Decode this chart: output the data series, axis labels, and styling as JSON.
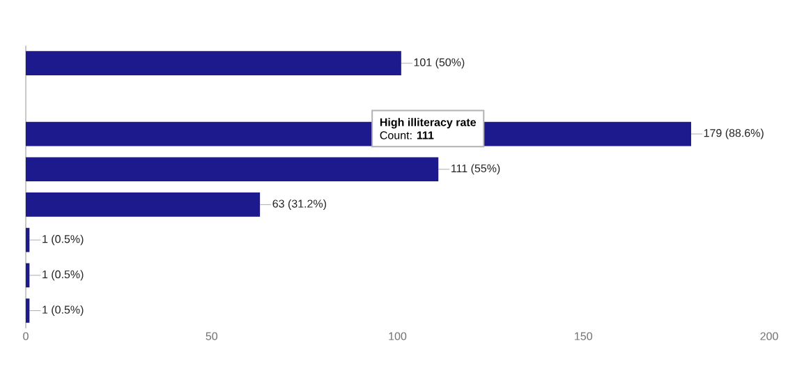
{
  "chart_data": {
    "type": "bar",
    "orientation": "horizontal",
    "categories": [
      null,
      null,
      null,
      null,
      null,
      null,
      null,
      null
    ],
    "values": [
      101,
      null,
      179,
      111,
      63,
      1,
      1,
      1
    ],
    "value_labels": [
      "101 (50%)",
      null,
      "179 (88.6%)",
      "111 (55%)",
      "63 (31.2%)",
      "1 (0.5%)",
      "1 (0.5%)",
      "1 (0.5%)"
    ],
    "color": "#1c1a8c",
    "xlim": [
      0,
      200
    ],
    "xticks": [
      0,
      50,
      100,
      150,
      200
    ],
    "grid": false,
    "annotations": [
      "High illiteracy rate",
      "Count: **111**"
    ]
  }
}
